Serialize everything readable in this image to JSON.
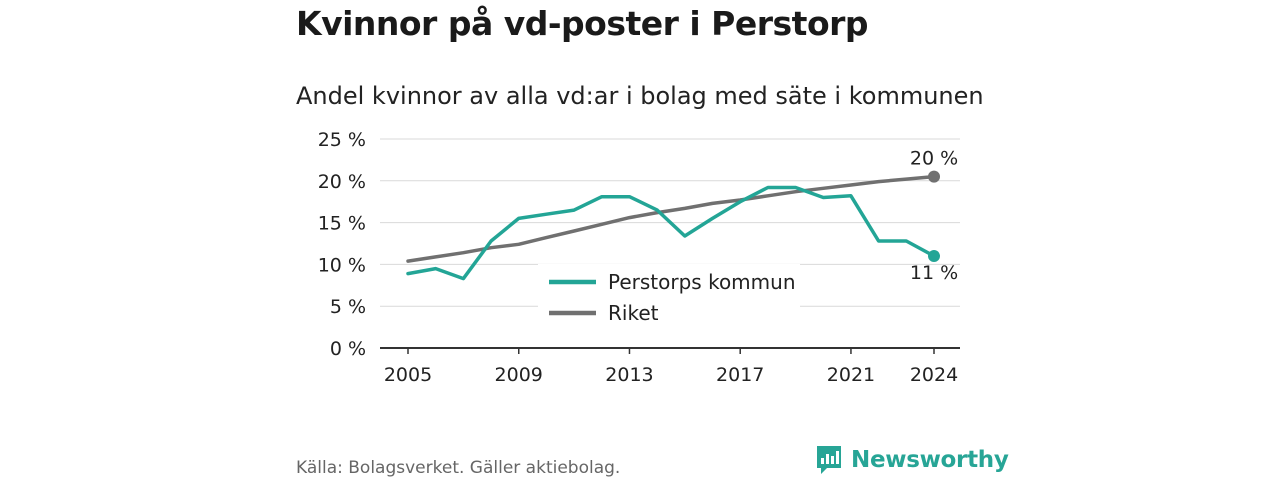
{
  "title": "Kvinnor på vd-poster i Perstorp",
  "subtitle": "Andel kvinnor av alla vd:ar i bolag med säte i kommunen",
  "source": "Källa: Bolagsverket. Gäller aktiebolag.",
  "brand": {
    "name": "Newsworthy",
    "icon": "bar-chart-logo-icon"
  },
  "colors": {
    "perstorp": "#23a596",
    "riket": "#707070",
    "grid": "#d9d9d9",
    "axis": "#333333"
  },
  "chart_data": {
    "type": "line",
    "x": [
      2005,
      2006,
      2007,
      2008,
      2009,
      2010,
      2011,
      2012,
      2013,
      2014,
      2015,
      2016,
      2017,
      2018,
      2019,
      2020,
      2021,
      2022,
      2023,
      2024
    ],
    "series": [
      {
        "name": "Perstorps kommun",
        "color": "#23a596",
        "values": [
          8.9,
          9.5,
          8.3,
          12.8,
          15.5,
          16.0,
          16.5,
          18.1,
          18.1,
          16.5,
          13.4,
          15.5,
          17.5,
          19.2,
          19.2,
          18.0,
          18.2,
          12.8,
          12.8,
          11.0
        ],
        "end_label": "11 %"
      },
      {
        "name": "Riket",
        "color": "#707070",
        "values": [
          10.4,
          10.9,
          11.4,
          12.0,
          12.4,
          13.2,
          14.0,
          14.8,
          15.6,
          16.2,
          16.7,
          17.3,
          17.7,
          18.2,
          18.7,
          19.1,
          19.5,
          19.9,
          20.2,
          20.5
        ],
        "end_label": "20 %"
      }
    ],
    "x_ticks": [
      2005,
      2009,
      2013,
      2017,
      2021,
      2024
    ],
    "x_tick_labels": [
      "2005",
      "2009",
      "2013",
      "2017",
      "2021",
      "2024"
    ],
    "y_ticks": [
      0,
      5,
      10,
      15,
      20,
      25
    ],
    "y_tick_labels": [
      "0 %",
      "5 %",
      "10 %",
      "15 %",
      "20 %",
      "25 %"
    ],
    "ylim": [
      0,
      25
    ],
    "xlim": [
      2004,
      2025
    ],
    "grid": true,
    "legend": {
      "position": "center",
      "entries": [
        "Perstorps kommun",
        "Riket"
      ]
    }
  }
}
